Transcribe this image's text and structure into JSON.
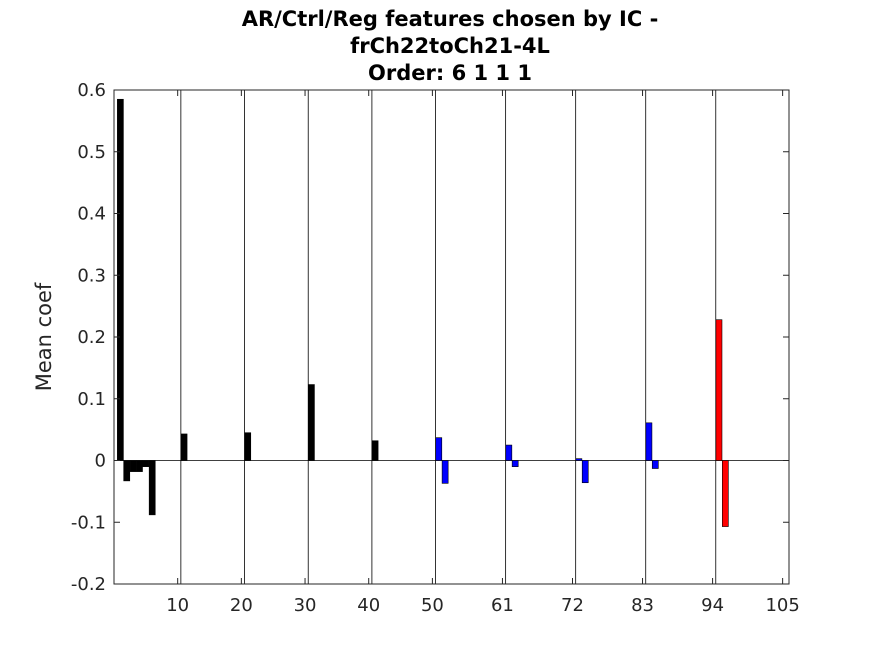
{
  "chart_data": {
    "type": "bar",
    "title": [
      "AR/Ctrl/Reg features chosen by IC -",
      "frCh22toCh21-4L",
      "Order: 6 1 1 1"
    ],
    "xlabel": "",
    "ylabel": "Mean coef",
    "xlim": [
      0,
      106
    ],
    "ylim": [
      -0.2,
      0.6
    ],
    "xticks": [
      10,
      20,
      30,
      40,
      50,
      61,
      72,
      83,
      94,
      105
    ],
    "yticks": [
      -0.2,
      -0.1,
      0,
      0.1,
      0.2,
      0.3,
      0.4,
      0.5,
      0.6
    ],
    "ytick_labels": [
      "-0.2",
      "-0.1",
      "0",
      "0.1",
      "0.2",
      "0.3",
      "0.4",
      "0.5",
      "0.6"
    ],
    "separators": [
      10,
      20,
      30,
      40,
      50,
      61,
      72,
      83,
      94
    ],
    "colors": {
      "black": "#000000",
      "blue": "#0000ff",
      "red": "#ff0000"
    },
    "series": [
      {
        "color": "black",
        "x": [
          1,
          2,
          3,
          4,
          5,
          6
        ],
        "values": [
          0.585,
          -0.033,
          -0.018,
          -0.018,
          -0.01,
          -0.088
        ]
      },
      {
        "color": "black",
        "x": [
          11
        ],
        "values": [
          0.043
        ]
      },
      {
        "color": "black",
        "x": [
          21
        ],
        "values": [
          0.045
        ]
      },
      {
        "color": "black",
        "x": [
          31
        ],
        "values": [
          0.123
        ]
      },
      {
        "color": "black",
        "x": [
          41
        ],
        "values": [
          0.032
        ]
      },
      {
        "color": "blue",
        "x": [
          51,
          52
        ],
        "values": [
          0.037,
          -0.037
        ]
      },
      {
        "color": "blue",
        "x": [
          62,
          63
        ],
        "values": [
          0.025,
          -0.01
        ]
      },
      {
        "color": "blue",
        "x": [
          73,
          74
        ],
        "values": [
          0.003,
          -0.036
        ]
      },
      {
        "color": "blue",
        "x": [
          84,
          85
        ],
        "values": [
          0.061,
          -0.013
        ]
      },
      {
        "color": "red",
        "x": [
          95,
          96
        ],
        "values": [
          0.228,
          -0.107
        ]
      }
    ]
  }
}
